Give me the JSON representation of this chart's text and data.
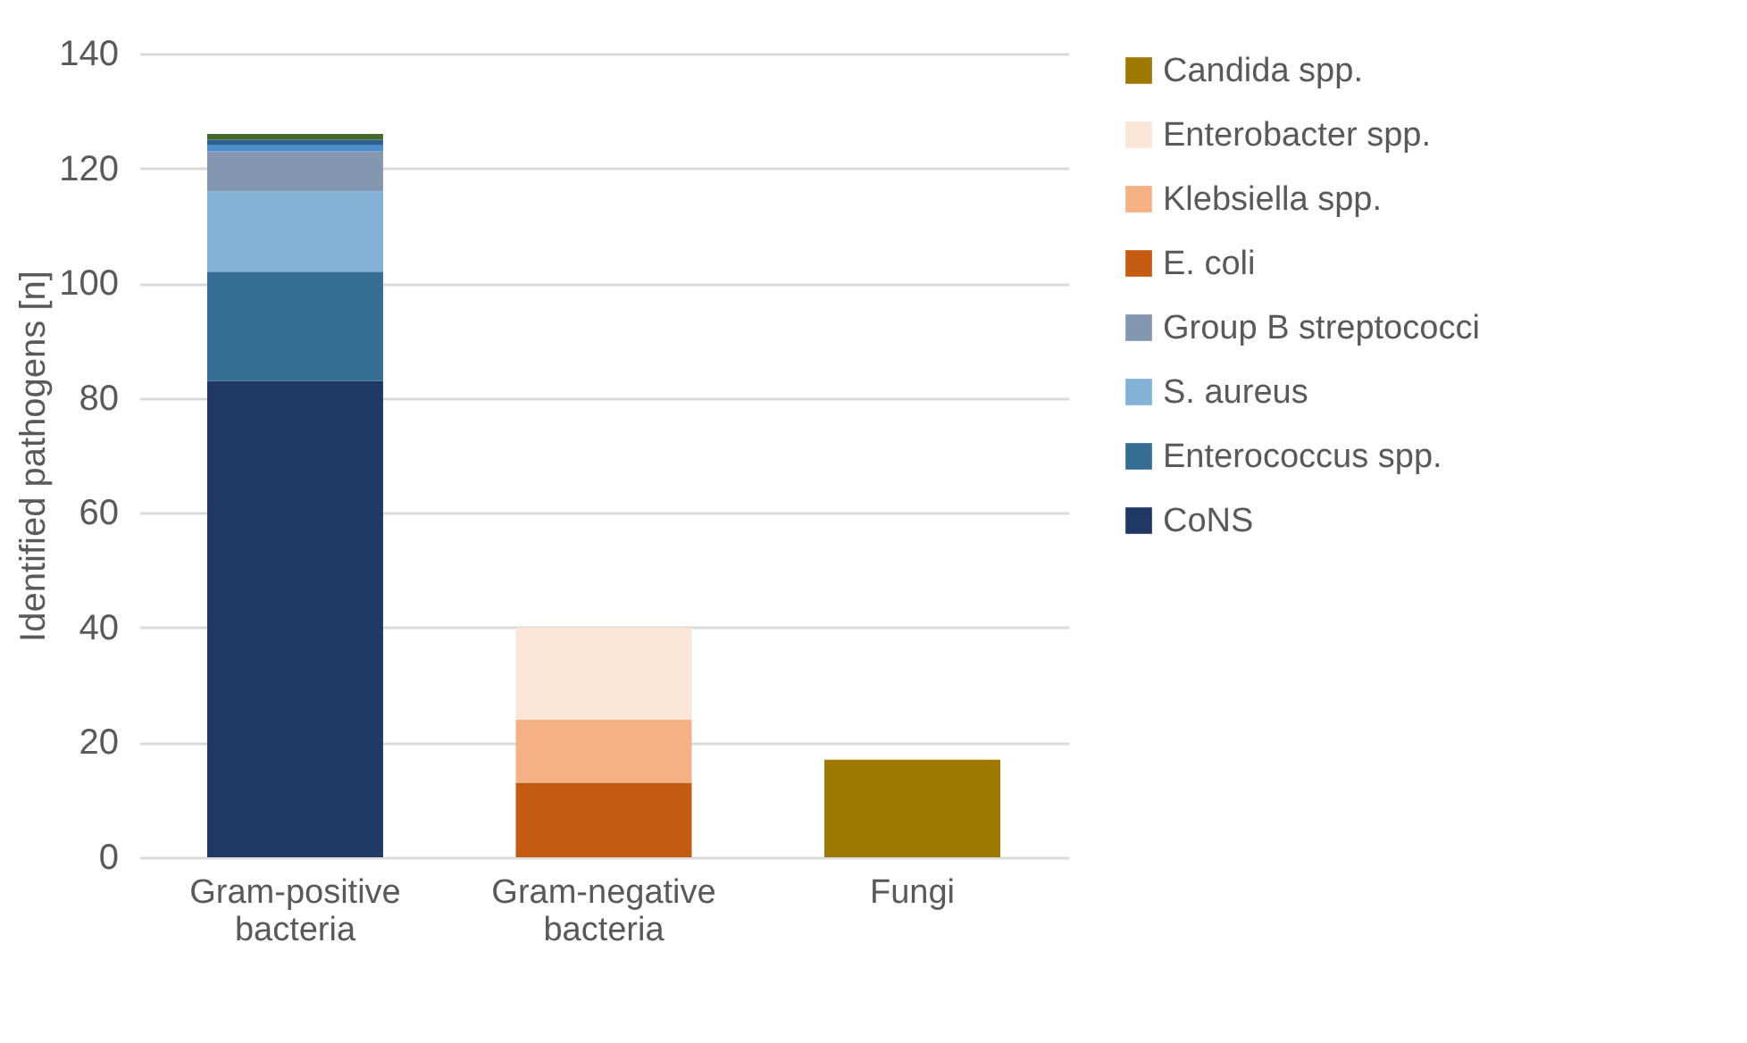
{
  "chart_data": {
    "type": "bar",
    "stacked": true,
    "ylabel": "Identified pathogens [n]",
    "categories": [
      "Gram-positive bacteria",
      "Gram-negative bacteria",
      "Fungi"
    ],
    "series": [
      {
        "name": "CoNS",
        "color": "#203864",
        "values": [
          83,
          null,
          null
        ]
      },
      {
        "name": "Enterococcus spp.",
        "color": "#356d94",
        "values": [
          19,
          null,
          null
        ]
      },
      {
        "name": "S. aureus",
        "color": "#82b3d6",
        "values": [
          14,
          null,
          null
        ]
      },
      {
        "name": "Group B streptococci",
        "color": "#8497b0",
        "values": [
          7,
          null,
          null
        ]
      },
      {
        "color": "#4a8ed0",
        "values": [
          1,
          null,
          null
        ]
      },
      {
        "color": "#2e5f94",
        "values": [
          1,
          null,
          null
        ]
      },
      {
        "color": "#43682b",
        "values": [
          1,
          null,
          null
        ]
      },
      {
        "name": "E. coli",
        "color": "#c55a11",
        "values": [
          null,
          13,
          null
        ]
      },
      {
        "name": "Klebsiella spp.",
        "color": "#f4b183",
        "values": [
          null,
          11,
          null
        ]
      },
      {
        "name": "Enterobacter spp.",
        "color": "#fbe5d6",
        "values": [
          null,
          16,
          null
        ]
      },
      {
        "name": "Candida spp.",
        "color": "#9e7800",
        "values": [
          null,
          null,
          17
        ]
      }
    ],
    "ylim": [
      0,
      140
    ],
    "yticks": [
      0,
      20,
      40,
      60,
      80,
      100,
      120,
      140
    ],
    "grid": "y",
    "legend": "right"
  }
}
